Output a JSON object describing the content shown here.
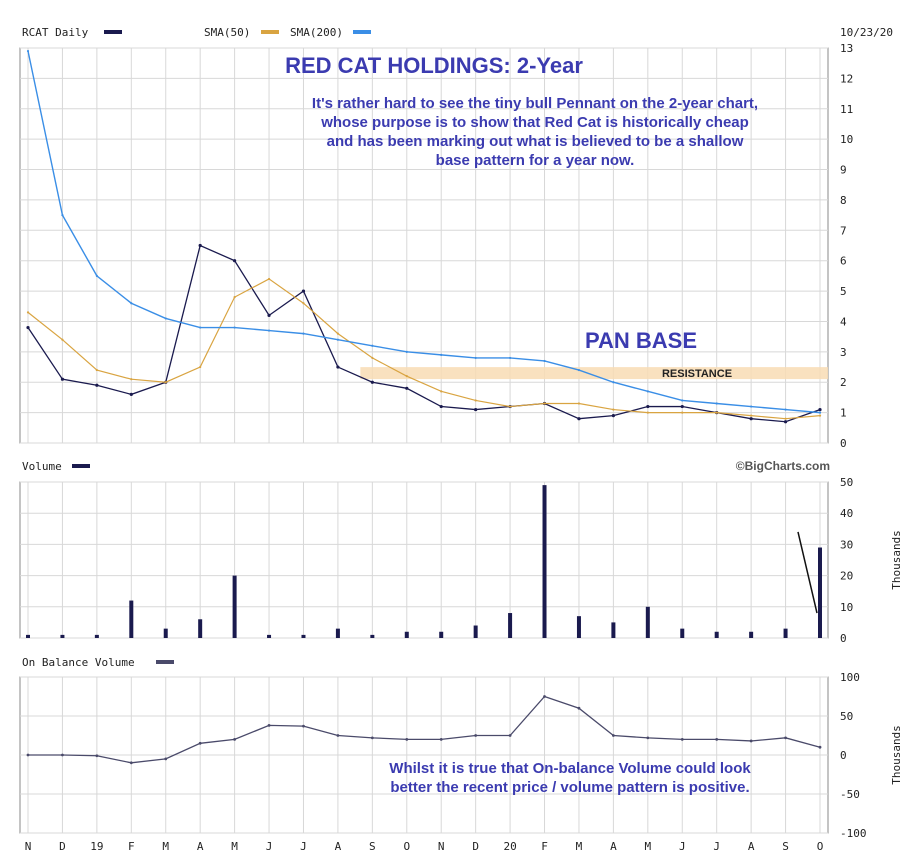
{
  "date": "10/23/20",
  "watermark": "©BigCharts.com",
  "colors": {
    "price": "#1a1a4e",
    "sma50": "#d9a441",
    "sma200": "#3a8ee6",
    "volume": "#1a1a4e",
    "obv": "#4a4a6a",
    "grid": "#d8d8d8",
    "anno": "#3b3bb0",
    "band": "#f8dcb4"
  },
  "x_months": [
    "N",
    "D",
    "19",
    "F",
    "M",
    "A",
    "M",
    "J",
    "J",
    "A",
    "S",
    "O",
    "N",
    "D",
    "20",
    "F",
    "M",
    "A",
    "M",
    "J",
    "J",
    "A",
    "S",
    "O"
  ],
  "annotations": {
    "title": "RED CAT HOLDINGS: 2-Year",
    "text1": [
      "It's rather hard to see the tiny bull Pennant on the 2-year chart,",
      "whose purpose is to show that Red Cat is historically cheap",
      "and has been marking out what is believed to be a shallow",
      "base pattern for a year now."
    ],
    "pan_base": "PAN BASE",
    "resistance": "RESISTANCE",
    "text2": [
      "Whilst it is true that On-balance Volume could look",
      "better the recent price / volume pattern is positive."
    ]
  },
  "chart_data": [
    {
      "type": "line",
      "panel": "price",
      "legend": [
        "RCAT Daily",
        "SMA(50)",
        "SMA(200)"
      ],
      "ylim": [
        0,
        13
      ],
      "yticks": [
        0,
        1,
        2,
        3,
        4,
        5,
        6,
        7,
        8,
        9,
        10,
        11,
        12,
        13
      ],
      "resistance": 2.3,
      "x": [
        "N",
        "D",
        "19",
        "F",
        "M",
        "A",
        "M",
        "J",
        "J",
        "A",
        "S",
        "O",
        "N",
        "D",
        "20",
        "F",
        "M",
        "A",
        "M",
        "J",
        "J",
        "A",
        "S",
        "O"
      ],
      "series": [
        {
          "name": "RCAT Daily",
          "values": [
            3.8,
            2.1,
            1.9,
            1.6,
            2.0,
            6.5,
            6.0,
            4.2,
            5.0,
            2.5,
            2.0,
            1.8,
            1.2,
            1.1,
            1.2,
            1.3,
            0.8,
            0.9,
            1.2,
            1.2,
            1.0,
            0.8,
            0.7,
            1.1
          ]
        },
        {
          "name": "SMA(50)",
          "values": [
            4.3,
            3.4,
            2.4,
            2.1,
            2.0,
            2.5,
            4.8,
            5.4,
            4.6,
            3.6,
            2.8,
            2.2,
            1.7,
            1.4,
            1.2,
            1.3,
            1.3,
            1.1,
            1.0,
            1.0,
            1.0,
            0.9,
            0.8,
            0.9
          ]
        },
        {
          "name": "SMA(200)",
          "values": [
            12.9,
            7.5,
            5.5,
            4.6,
            4.1,
            3.8,
            3.8,
            3.7,
            3.6,
            3.4,
            3.2,
            3.0,
            2.9,
            2.8,
            2.8,
            2.7,
            2.4,
            2.0,
            1.7,
            1.4,
            1.3,
            1.2,
            1.1,
            1.0
          ]
        }
      ]
    },
    {
      "type": "bar",
      "panel": "volume",
      "legend": [
        "Volume"
      ],
      "ylabel": "Thousands",
      "ylim": [
        0,
        50
      ],
      "yticks": [
        0,
        10,
        20,
        30,
        40,
        50
      ],
      "x": [
        "N",
        "D",
        "19",
        "F",
        "M",
        "A",
        "M",
        "J",
        "J",
        "A",
        "S",
        "O",
        "N",
        "D",
        "20",
        "F",
        "M",
        "A",
        "M",
        "J",
        "J",
        "A",
        "S",
        "O"
      ],
      "values": [
        1,
        1,
        1,
        12,
        3,
        6,
        20,
        1,
        1,
        3,
        1,
        2,
        2,
        4,
        8,
        49,
        7,
        5,
        10,
        3,
        2,
        2,
        3,
        29
      ]
    },
    {
      "type": "line",
      "panel": "obv",
      "legend": [
        "On Balance Volume"
      ],
      "ylabel": "Thousands",
      "ylim": [
        -100,
        100
      ],
      "yticks": [
        -100,
        -50,
        0,
        50,
        100
      ],
      "x": [
        "N",
        "D",
        "19",
        "F",
        "M",
        "A",
        "M",
        "J",
        "J",
        "A",
        "S",
        "O",
        "N",
        "D",
        "20",
        "F",
        "M",
        "A",
        "M",
        "J",
        "J",
        "A",
        "S",
        "O"
      ],
      "values": [
        0,
        0,
        -1,
        -10,
        -5,
        15,
        20,
        38,
        37,
        25,
        22,
        20,
        20,
        25,
        25,
        75,
        60,
        25,
        22,
        20,
        20,
        18,
        22,
        10
      ]
    }
  ]
}
